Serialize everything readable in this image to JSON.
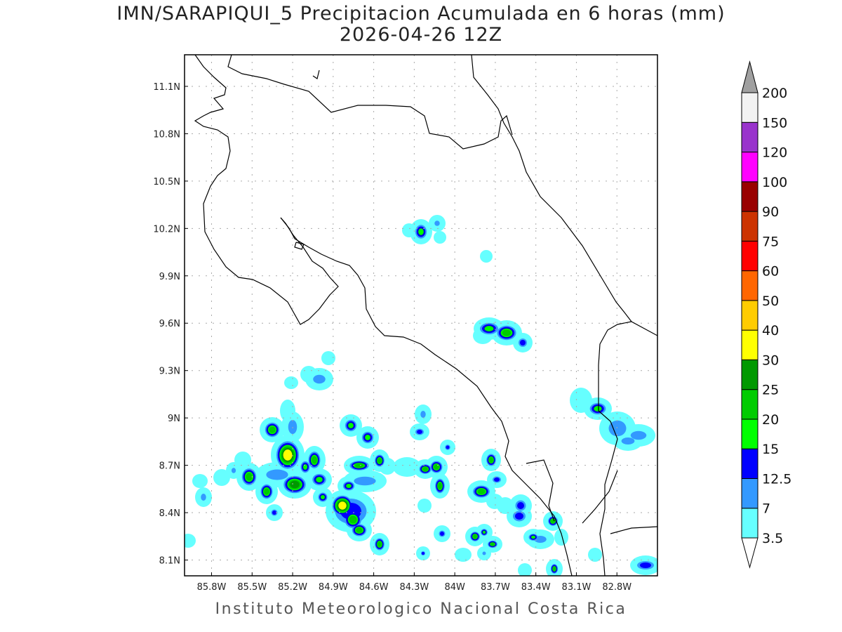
{
  "title": "IMN/SARAPIQUI_5 Precipitacion Acumulada en 6 horas (mm)",
  "subtitle": "2026-04-26 12Z",
  "credit": "Instituto Meteorologico Nacional Costa Rica",
  "map": {
    "extent_lon": [
      -86.0,
      -82.5
    ],
    "extent_lat": [
      8.0,
      11.3
    ],
    "grid": "dotted",
    "lon_ticks": [
      {
        "value": -85.8,
        "label": "85.8W"
      },
      {
        "value": -85.5,
        "label": "85.5W"
      },
      {
        "value": -85.2,
        "label": "85.2W"
      },
      {
        "value": -84.9,
        "label": "84.9W"
      },
      {
        "value": -84.6,
        "label": "84.6W"
      },
      {
        "value": -84.3,
        "label": "84.3W"
      },
      {
        "value": -84.0,
        "label": "84W"
      },
      {
        "value": -83.7,
        "label": "83.7W"
      },
      {
        "value": -83.4,
        "label": "83.4W"
      },
      {
        "value": -83.1,
        "label": "83.1W"
      },
      {
        "value": -82.8,
        "label": "82.8W"
      }
    ],
    "lat_ticks": [
      {
        "value": 11.1,
        "label": "11.1N"
      },
      {
        "value": 10.8,
        "label": "10.8N"
      },
      {
        "value": 10.5,
        "label": "10.5N"
      },
      {
        "value": 10.2,
        "label": "10.2N"
      },
      {
        "value": 9.9,
        "label": "9.9N"
      },
      {
        "value": 9.6,
        "label": "9.6N"
      },
      {
        "value": 9.3,
        "label": "9.3N"
      },
      {
        "value": 9.0,
        "label": "9N"
      },
      {
        "value": 8.7,
        "label": "8.7N"
      },
      {
        "value": 8.4,
        "label": "8.4N"
      },
      {
        "value": 8.1,
        "label": "8.1N"
      }
    ]
  },
  "colorbar": {
    "labels": [
      "3.5",
      "7",
      "12.5",
      "15",
      "20",
      "25",
      "30",
      "40",
      "50",
      "60",
      "75",
      "90",
      "100",
      "120",
      "150",
      "200"
    ],
    "colors": [
      "#66ffff",
      "#3399ff",
      "#0000ff",
      "#00ff00",
      "#00cc00",
      "#009900",
      "#ffff00",
      "#ffcc00",
      "#ff6600",
      "#ff0000",
      "#cc3300",
      "#990000",
      "#ff00ff",
      "#9933cc",
      "#f2f2f2"
    ],
    "over_color": "#a0a0a0",
    "under_color": "#ffffff"
  }
}
